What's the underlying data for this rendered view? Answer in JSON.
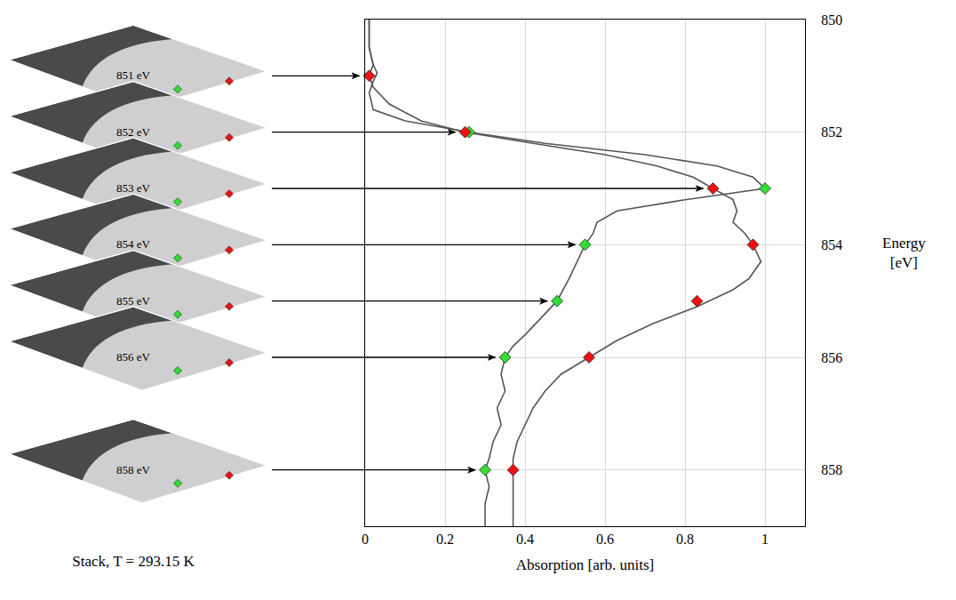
{
  "chart_data": {
    "type": "line",
    "xlabel": "Absorption [arb. units]",
    "ylabel": "Energy [eV]",
    "xlim": [
      0,
      1.1
    ],
    "xticks": [
      0,
      0.2,
      0.4,
      0.6,
      0.8,
      1
    ],
    "ylim": [
      859,
      850
    ],
    "yticks": [
      850,
      852,
      854,
      856,
      858
    ],
    "grid": true,
    "series": [
      {
        "type": "line",
        "color": "#555555",
        "line_style": "solid",
        "x": [
          0.01,
          0.01,
          0.02,
          0.03,
          0.02,
          0.01,
          0.02,
          0.1,
          0.26,
          0.45,
          0.7,
          0.88,
          0.97,
          1.0,
          0.8,
          0.63,
          0.58,
          0.57,
          0.55,
          0.53,
          0.51,
          0.48,
          0.44,
          0.4,
          0.37,
          0.35,
          0.34,
          0.35,
          0.33,
          0.34,
          0.32,
          0.31,
          0.3,
          0.31,
          0.3,
          0.3
        ],
        "y": [
          850.0,
          850.5,
          850.8,
          850.95,
          851.1,
          851.3,
          851.6,
          851.8,
          852.0,
          852.2,
          852.4,
          852.6,
          852.8,
          853.0,
          853.2,
          853.4,
          853.6,
          853.8,
          854.0,
          854.3,
          854.6,
          855.0,
          855.3,
          855.6,
          855.8,
          856.0,
          856.3,
          856.6,
          856.9,
          857.2,
          857.5,
          857.8,
          858.0,
          858.3,
          858.6,
          859.0
        ]
      },
      {
        "type": "line",
        "color": "#555555",
        "line_style": "solid",
        "x": [
          0.01,
          0.01,
          0.02,
          0.01,
          0.02,
          0.06,
          0.14,
          0.25,
          0.42,
          0.6,
          0.73,
          0.82,
          0.87,
          0.92,
          0.93,
          0.92,
          0.95,
          0.97,
          0.99,
          0.96,
          0.92,
          0.86,
          0.83,
          0.72,
          0.63,
          0.56,
          0.49,
          0.45,
          0.42,
          0.4,
          0.38,
          0.37,
          0.37,
          0.37,
          0.37
        ],
        "y": [
          850.0,
          850.5,
          850.8,
          851.0,
          851.2,
          851.5,
          851.8,
          852.0,
          852.2,
          852.4,
          852.6,
          852.8,
          853.0,
          853.2,
          853.4,
          853.6,
          853.8,
          854.0,
          854.3,
          854.6,
          854.8,
          855.0,
          855.1,
          855.4,
          855.7,
          856.0,
          856.3,
          856.6,
          856.9,
          857.2,
          857.5,
          857.8,
          858.0,
          858.4,
          859.0
        ]
      },
      {
        "type": "scatter",
        "color": "#33dd33",
        "marker": "diamond",
        "x": [
          0.26,
          1.0,
          0.55,
          0.48,
          0.35,
          0.3
        ],
        "y": [
          852,
          853,
          854,
          855,
          856,
          858
        ]
      },
      {
        "type": "scatter",
        "color": "#ee1111",
        "marker": "diamond",
        "x": [
          0.01,
          0.25,
          0.87,
          0.97,
          0.83,
          0.56,
          0.37
        ],
        "y": [
          851,
          852,
          853,
          854,
          855,
          856,
          858
        ]
      }
    ]
  },
  "stack": {
    "caption": "Stack, T = 293.15 K",
    "panels": [
      {
        "label": "851 eV",
        "energy": 851
      },
      {
        "label": "852 eV",
        "energy": 852
      },
      {
        "label": "853 eV",
        "energy": 853
      },
      {
        "label": "854 eV",
        "energy": 854
      },
      {
        "label": "855 eV",
        "energy": 855
      },
      {
        "label": "856 eV",
        "energy": 856
      },
      {
        "label": "858 eV",
        "energy": 858
      }
    ]
  }
}
